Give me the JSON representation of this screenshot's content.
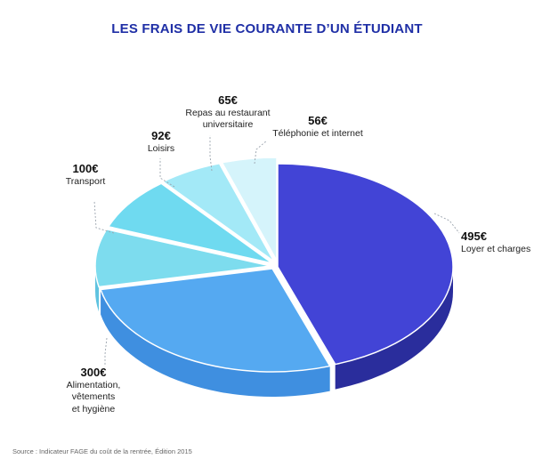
{
  "title": "LES FRAIS DE VIE COURANTE D’UN ÉTUDIANT",
  "source": "Source : Indicateur FAGE du coût de la rentrée, Édition 2015",
  "chart_data": {
    "type": "pie",
    "title": "LES FRAIS DE VIE COURANTE D’UN ÉTUDIANT",
    "unit": "€",
    "slices": [
      {
        "label": "Loyer et charges",
        "value": 495,
        "value_label": "495€",
        "color": "#4244d6",
        "side_color": "#2a2d9c"
      },
      {
        "label": "Alimentation, vêtements et hygiène",
        "value": 300,
        "value_label": "300€",
        "color": "#55a9f1",
        "side_color": "#3f8fe0"
      },
      {
        "label": "Transport",
        "value": 100,
        "value_label": "100€",
        "color": "#7ddcee",
        "side_color": "#5fc3e0"
      },
      {
        "label": "Loisirs",
        "value": 92,
        "value_label": "92€",
        "color": "#6fdaf0",
        "side_color": "#55c5e2"
      },
      {
        "label": "Repas au restaurant universitaire",
        "value": 65,
        "value_label": "65€",
        "color": "#a3e9f7",
        "side_color": "#86d9ef"
      },
      {
        "label": "Téléphonie et internet",
        "value": 56,
        "value_label": "56€",
        "color": "#d5f4fb",
        "side_color": "#b4e6f3"
      }
    ]
  },
  "labels": {
    "loyer": {
      "value": "495€",
      "line1": "Loyer et charges"
    },
    "alimentation": {
      "value": "300€",
      "line1": "Alimentation, vêtements",
      "line2": "et hygiène"
    },
    "transport": {
      "value": "100€",
      "line1": "Transport"
    },
    "loisirs": {
      "value": "92€",
      "line1": "Loisirs"
    },
    "repas": {
      "value": "65€",
      "line1": "Repas au restaurant",
      "line2": "universitaire"
    },
    "telephonie": {
      "value": "56€",
      "line1": "Téléphonie et internet"
    }
  }
}
